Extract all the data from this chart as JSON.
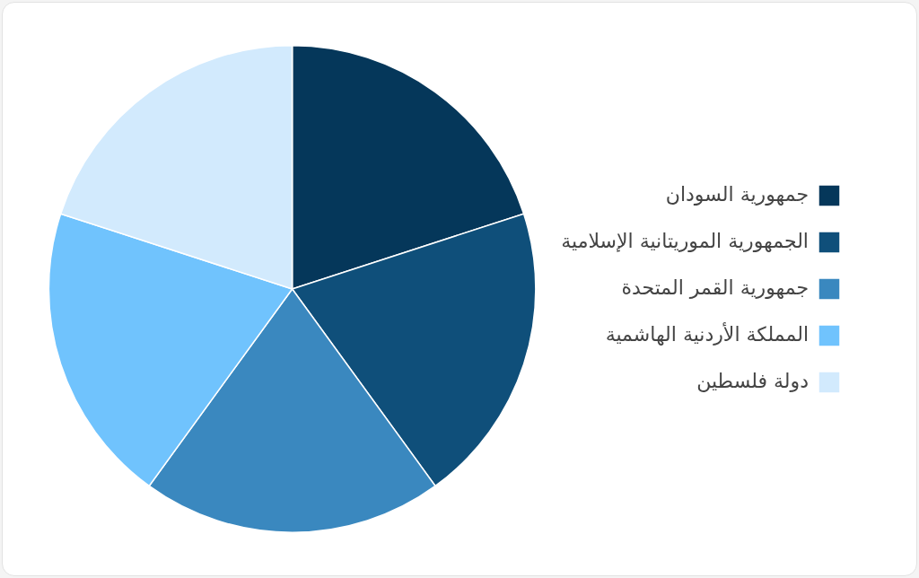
{
  "chart_data": {
    "type": "pie",
    "categories": [
      "جمهورية السودان",
      "الجمهورية الموريتانية الإسلامية",
      "جمهورية القمر المتحدة",
      "المملكة الأردنية الهاشمية",
      "دولة فلسطين"
    ],
    "values": [
      20,
      20,
      20,
      20,
      20
    ],
    "colors": [
      "#05375a",
      "#0f4f7a",
      "#3a88bf",
      "#70c3fd",
      "#d2eafd"
    ],
    "legend": "right"
  }
}
